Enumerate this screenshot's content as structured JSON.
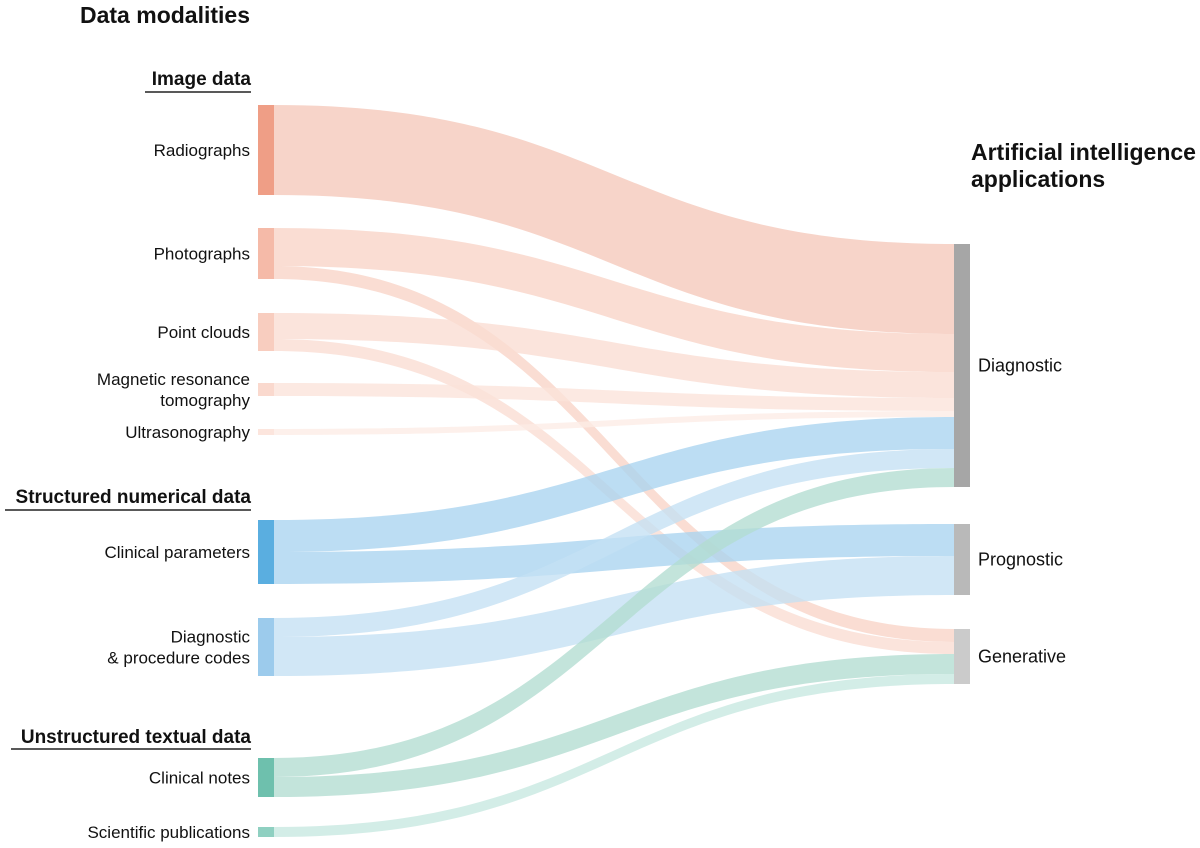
{
  "title": "Data modalities",
  "target_title_lines": [
    "Artificial intelligence",
    "applications"
  ],
  "groups": [
    {
      "key": "image",
      "label": "Image data"
    },
    {
      "key": "structured",
      "label": "Structured numerical data"
    },
    {
      "key": "unstructured",
      "label": "Unstructured textual data"
    }
  ],
  "sources": [
    {
      "key": "radiographs",
      "group": "image",
      "label_lines": [
        "Radiographs"
      ],
      "color": "#ef9e86",
      "flow_color": "#f5c8ba"
    },
    {
      "key": "photographs",
      "group": "image",
      "label_lines": [
        "Photographs"
      ],
      "color": "#f5baa8",
      "flow_color": "#f8d3c7"
    },
    {
      "key": "point_clouds",
      "group": "image",
      "label_lines": [
        "Point clouds"
      ],
      "color": "#f8cdbf",
      "flow_color": "#fadcd2"
    },
    {
      "key": "mri",
      "group": "image",
      "label_lines": [
        "Magnetic resonance",
        "tomography"
      ],
      "color": "#fad9ce",
      "flow_color": "#fbe3da"
    },
    {
      "key": "ultrasonography",
      "group": "image",
      "label_lines": [
        "Ultrasonography"
      ],
      "color": "#fce5dd",
      "flow_color": "#fdece6"
    },
    {
      "key": "clinical_parameters",
      "group": "structured",
      "label_lines": [
        "Clinical parameters"
      ],
      "color": "#5aaee0",
      "flow_color": "#a9d3ef"
    },
    {
      "key": "codes",
      "group": "structured",
      "label_lines": [
        "Diagnostic",
        "& procedure codes"
      ],
      "color": "#9ccbec",
      "flow_color": "#c4e0f3"
    },
    {
      "key": "clinical_notes",
      "group": "unstructured",
      "label_lines": [
        "Clinical notes"
      ],
      "color": "#6ec0ad",
      "flow_color": "#b2dcd1"
    },
    {
      "key": "publications",
      "group": "unstructured",
      "label_lines": [
        "Scientific publications"
      ],
      "color": "#8fd0c1",
      "flow_color": "#c7e8e0"
    }
  ],
  "targets": [
    {
      "key": "diagnostic",
      "label": "Diagnostic",
      "color": "#a6a6a6"
    },
    {
      "key": "prognostic",
      "label": "Prognostic",
      "color": "#b9b9b9"
    },
    {
      "key": "generative",
      "label": "Generative",
      "color": "#cbcbcb"
    }
  ],
  "flows": [
    {
      "source": "radiographs",
      "target": "diagnostic",
      "value": 90
    },
    {
      "source": "photographs",
      "target": "diagnostic",
      "value": 38
    },
    {
      "source": "photographs",
      "target": "generative",
      "value": 13
    },
    {
      "source": "point_clouds",
      "target": "diagnostic",
      "value": 26
    },
    {
      "source": "point_clouds",
      "target": "generative",
      "value": 12
    },
    {
      "source": "mri",
      "target": "diagnostic",
      "value": 13
    },
    {
      "source": "ultrasonography",
      "target": "diagnostic",
      "value": 6
    },
    {
      "source": "clinical_parameters",
      "target": "diagnostic",
      "value": 32
    },
    {
      "source": "clinical_parameters",
      "target": "prognostic",
      "value": 32
    },
    {
      "source": "codes",
      "target": "diagnostic",
      "value": 19
    },
    {
      "source": "codes",
      "target": "prognostic",
      "value": 39
    },
    {
      "source": "clinical_notes",
      "target": "diagnostic",
      "value": 19
    },
    {
      "source": "clinical_notes",
      "target": "generative",
      "value": 20
    },
    {
      "source": "publications",
      "target": "generative",
      "value": 10
    }
  ]
}
